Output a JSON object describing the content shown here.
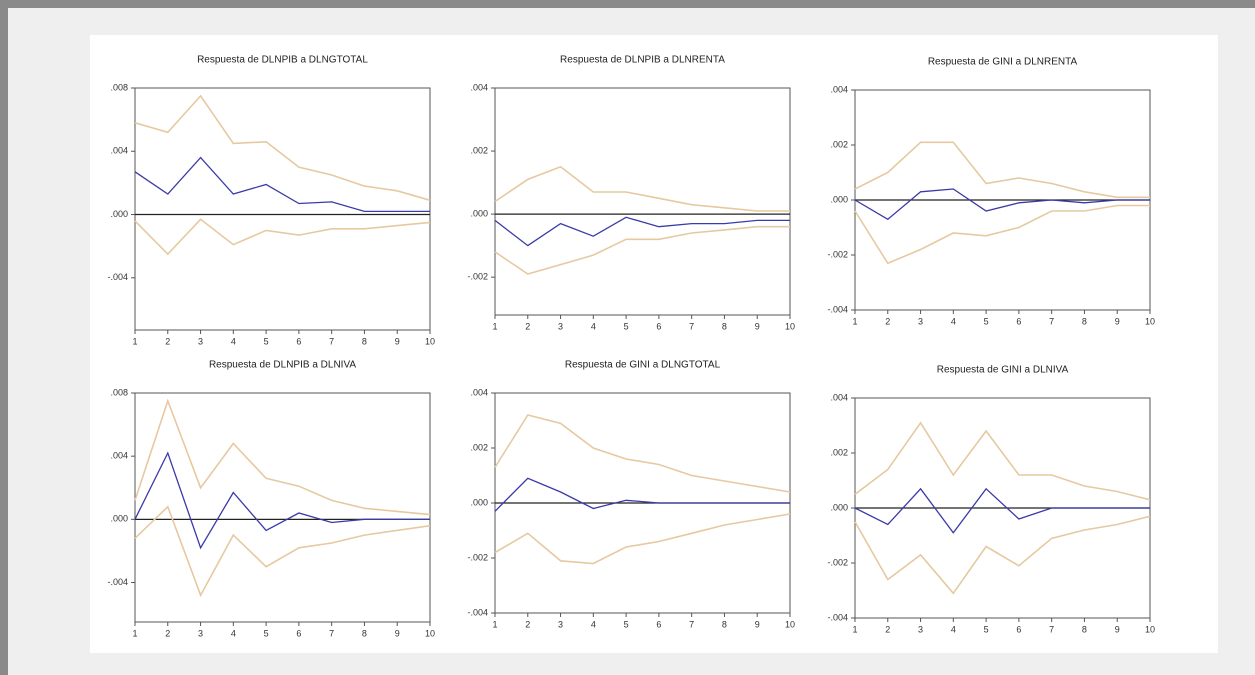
{
  "chart_data": [
    {
      "type": "line",
      "title": "Respuesta de DLNPIB a DLNGTOTAL",
      "x": [
        1,
        2,
        3,
        4,
        5,
        6,
        7,
        8,
        9,
        10
      ],
      "xlim": [
        1,
        10
      ],
      "xticks": [
        1,
        2,
        3,
        4,
        5,
        6,
        7,
        8,
        9,
        10
      ],
      "ylim": [
        -0.0073,
        0.008
      ],
      "yticks": [
        {
          "value": -0.004,
          "label": "-.004"
        },
        {
          "value": 0,
          "label": ".000"
        },
        {
          "value": 0.004,
          "label": ".004"
        },
        {
          "value": 0.008,
          "label": ".008"
        }
      ],
      "series": [
        {
          "color": "#3a3aa8",
          "values": [
            0.0027,
            0.0013,
            0.0036,
            0.0013,
            0.0019,
            0.0007,
            0.0008,
            0.0002,
            0.0002,
            0.0002
          ]
        },
        {
          "color": "#e6c9a0",
          "values": [
            0.0058,
            0.0052,
            0.0075,
            0.0045,
            0.0046,
            0.003,
            0.0025,
            0.0018,
            0.0015,
            0.0009
          ]
        },
        {
          "color": "#e6c9a0",
          "values": [
            -0.0004,
            -0.0025,
            -0.0003,
            -0.0019,
            -0.001,
            -0.0013,
            -0.0009,
            -0.0009,
            -0.0007,
            -0.0005
          ]
        }
      ]
    },
    {
      "type": "line",
      "title": "Respuesta de DLNPIB a DLNRENTA",
      "x": [
        1,
        2,
        3,
        4,
        5,
        6,
        7,
        8,
        9,
        10
      ],
      "xlim": [
        1,
        10
      ],
      "xticks": [
        1,
        2,
        3,
        4,
        5,
        6,
        7,
        8,
        9,
        10
      ],
      "ylim": [
        -0.0032,
        0.004
      ],
      "yticks": [
        {
          "value": -0.002,
          "label": "-.002"
        },
        {
          "value": 0,
          "label": ".000"
        },
        {
          "value": 0.002,
          "label": ".002"
        },
        {
          "value": 0.004,
          "label": ".004"
        }
      ],
      "series": [
        {
          "color": "#3a3aa8",
          "values": [
            -0.0002,
            -0.001,
            -0.0003,
            -0.0007,
            -0.0001,
            -0.0004,
            -0.0003,
            -0.0003,
            -0.0002,
            -0.0002
          ]
        },
        {
          "color": "#e6c9a0",
          "values": [
            0.0004,
            0.0011,
            0.0015,
            0.0007,
            0.0007,
            0.0005,
            0.0003,
            0.0002,
            0.0001,
            0.0001
          ]
        },
        {
          "color": "#e6c9a0",
          "values": [
            -0.0012,
            -0.0019,
            -0.0016,
            -0.0013,
            -0.0008,
            -0.0008,
            -0.0006,
            -0.0005,
            -0.0004,
            -0.0004
          ]
        }
      ]
    },
    {
      "type": "line",
      "title": "Respuesta de GINI a DLNRENTA",
      "x": [
        1,
        2,
        3,
        4,
        5,
        6,
        7,
        8,
        9,
        10
      ],
      "xlim": [
        1,
        10
      ],
      "xticks": [
        1,
        2,
        3,
        4,
        5,
        6,
        7,
        8,
        9,
        10
      ],
      "ylim": [
        -0.004,
        0.004
      ],
      "yticks": [
        {
          "value": -0.004,
          "label": "-.004"
        },
        {
          "value": -0.002,
          "label": "-.002"
        },
        {
          "value": 0,
          "label": ".000"
        },
        {
          "value": 0.002,
          "label": ".002"
        },
        {
          "value": 0.004,
          "label": ".004"
        }
      ],
      "series": [
        {
          "color": "#3a3aa8",
          "values": [
            0,
            -0.0007,
            0.0003,
            0.0004,
            -0.0004,
            -0.0001,
            0,
            -0.0001,
            0,
            0
          ]
        },
        {
          "color": "#e6c9a0",
          "values": [
            0.0004,
            0.001,
            0.0021,
            0.0021,
            0.0006,
            0.0008,
            0.0006,
            0.0003,
            0.0001,
            0.0001
          ]
        },
        {
          "color": "#e6c9a0",
          "values": [
            -0.0004,
            -0.0023,
            -0.0018,
            -0.0012,
            -0.0013,
            -0.001,
            -0.0004,
            -0.0004,
            -0.0002,
            -0.0002
          ]
        }
      ]
    },
    {
      "type": "line",
      "title": "Respuesta de DLNPIB a DLNIVA",
      "x": [
        1,
        2,
        3,
        4,
        5,
        6,
        7,
        8,
        9,
        10
      ],
      "xlim": [
        1,
        10
      ],
      "xticks": [
        1,
        2,
        3,
        4,
        5,
        6,
        7,
        8,
        9,
        10
      ],
      "ylim": [
        -0.0065,
        0.008
      ],
      "yticks": [
        {
          "value": -0.004,
          "label": "-.004"
        },
        {
          "value": 0,
          "label": ".000"
        },
        {
          "value": 0.004,
          "label": ".004"
        },
        {
          "value": 0.008,
          "label": ".008"
        }
      ],
      "series": [
        {
          "color": "#3a3aa8",
          "values": [
            0,
            0.0042,
            -0.0018,
            0.0017,
            -0.0007,
            0.0004,
            -0.0002,
            0,
            0,
            0
          ]
        },
        {
          "color": "#e6c9a0",
          "values": [
            0.0012,
            0.0075,
            0.002,
            0.0048,
            0.0026,
            0.0021,
            0.0012,
            0.0007,
            0.0005,
            0.0003
          ]
        },
        {
          "color": "#e6c9a0",
          "values": [
            -0.0012,
            0.0008,
            -0.0048,
            -0.001,
            -0.003,
            -0.0018,
            -0.0015,
            -0.001,
            -0.0007,
            -0.0004
          ]
        }
      ]
    },
    {
      "type": "line",
      "title": "Respuesta de GINI a DLNGTOTAL",
      "x": [
        1,
        2,
        3,
        4,
        5,
        6,
        7,
        8,
        9,
        10
      ],
      "xlim": [
        1,
        10
      ],
      "xticks": [
        1,
        2,
        3,
        4,
        5,
        6,
        7,
        8,
        9,
        10
      ],
      "ylim": [
        -0.004,
        0.004
      ],
      "yticks": [
        {
          "value": -0.004,
          "label": "-.004"
        },
        {
          "value": -0.002,
          "label": "-.002"
        },
        {
          "value": 0,
          "label": ".000"
        },
        {
          "value": 0.002,
          "label": ".002"
        },
        {
          "value": 0.004,
          "label": ".004"
        }
      ],
      "series": [
        {
          "color": "#3a3aa8",
          "values": [
            -0.0003,
            0.0009,
            0.0004,
            -0.0002,
            0.0001,
            0,
            0,
            0,
            0,
            0
          ]
        },
        {
          "color": "#e6c9a0",
          "values": [
            0.0013,
            0.0032,
            0.0029,
            0.002,
            0.0016,
            0.0014,
            0.001,
            0.0008,
            0.0006,
            0.0004
          ]
        },
        {
          "color": "#e6c9a0",
          "values": [
            -0.0018,
            -0.0011,
            -0.0021,
            -0.0022,
            -0.0016,
            -0.0014,
            -0.0011,
            -0.0008,
            -0.0006,
            -0.0004
          ]
        }
      ]
    },
    {
      "type": "line",
      "title": "Respuesta de GINI a DLNIVA",
      "x": [
        1,
        2,
        3,
        4,
        5,
        6,
        7,
        8,
        9,
        10
      ],
      "xlim": [
        1,
        10
      ],
      "xticks": [
        1,
        2,
        3,
        4,
        5,
        6,
        7,
        8,
        9,
        10
      ],
      "ylim": [
        -0.004,
        0.004
      ],
      "yticks": [
        {
          "value": -0.004,
          "label": "-.004"
        },
        {
          "value": -0.002,
          "label": "-.002"
        },
        {
          "value": 0,
          "label": ".000"
        },
        {
          "value": 0.002,
          "label": ".002"
        },
        {
          "value": 0.004,
          "label": ".004"
        }
      ],
      "series": [
        {
          "color": "#3a3aa8",
          "values": [
            0,
            -0.0006,
            0.0007,
            -0.0009,
            0.0007,
            -0.0004,
            0,
            0,
            0,
            0
          ]
        },
        {
          "color": "#e6c9a0",
          "values": [
            0.0005,
            0.0014,
            0.0031,
            0.0012,
            0.0028,
            0.0012,
            0.0012,
            0.0008,
            0.0006,
            0.0003
          ]
        },
        {
          "color": "#e6c9a0",
          "values": [
            -0.0005,
            -0.0026,
            -0.0017,
            -0.0031,
            -0.0014,
            -0.0021,
            -0.0011,
            -0.0008,
            -0.0006,
            -0.0003
          ]
        }
      ]
    }
  ]
}
